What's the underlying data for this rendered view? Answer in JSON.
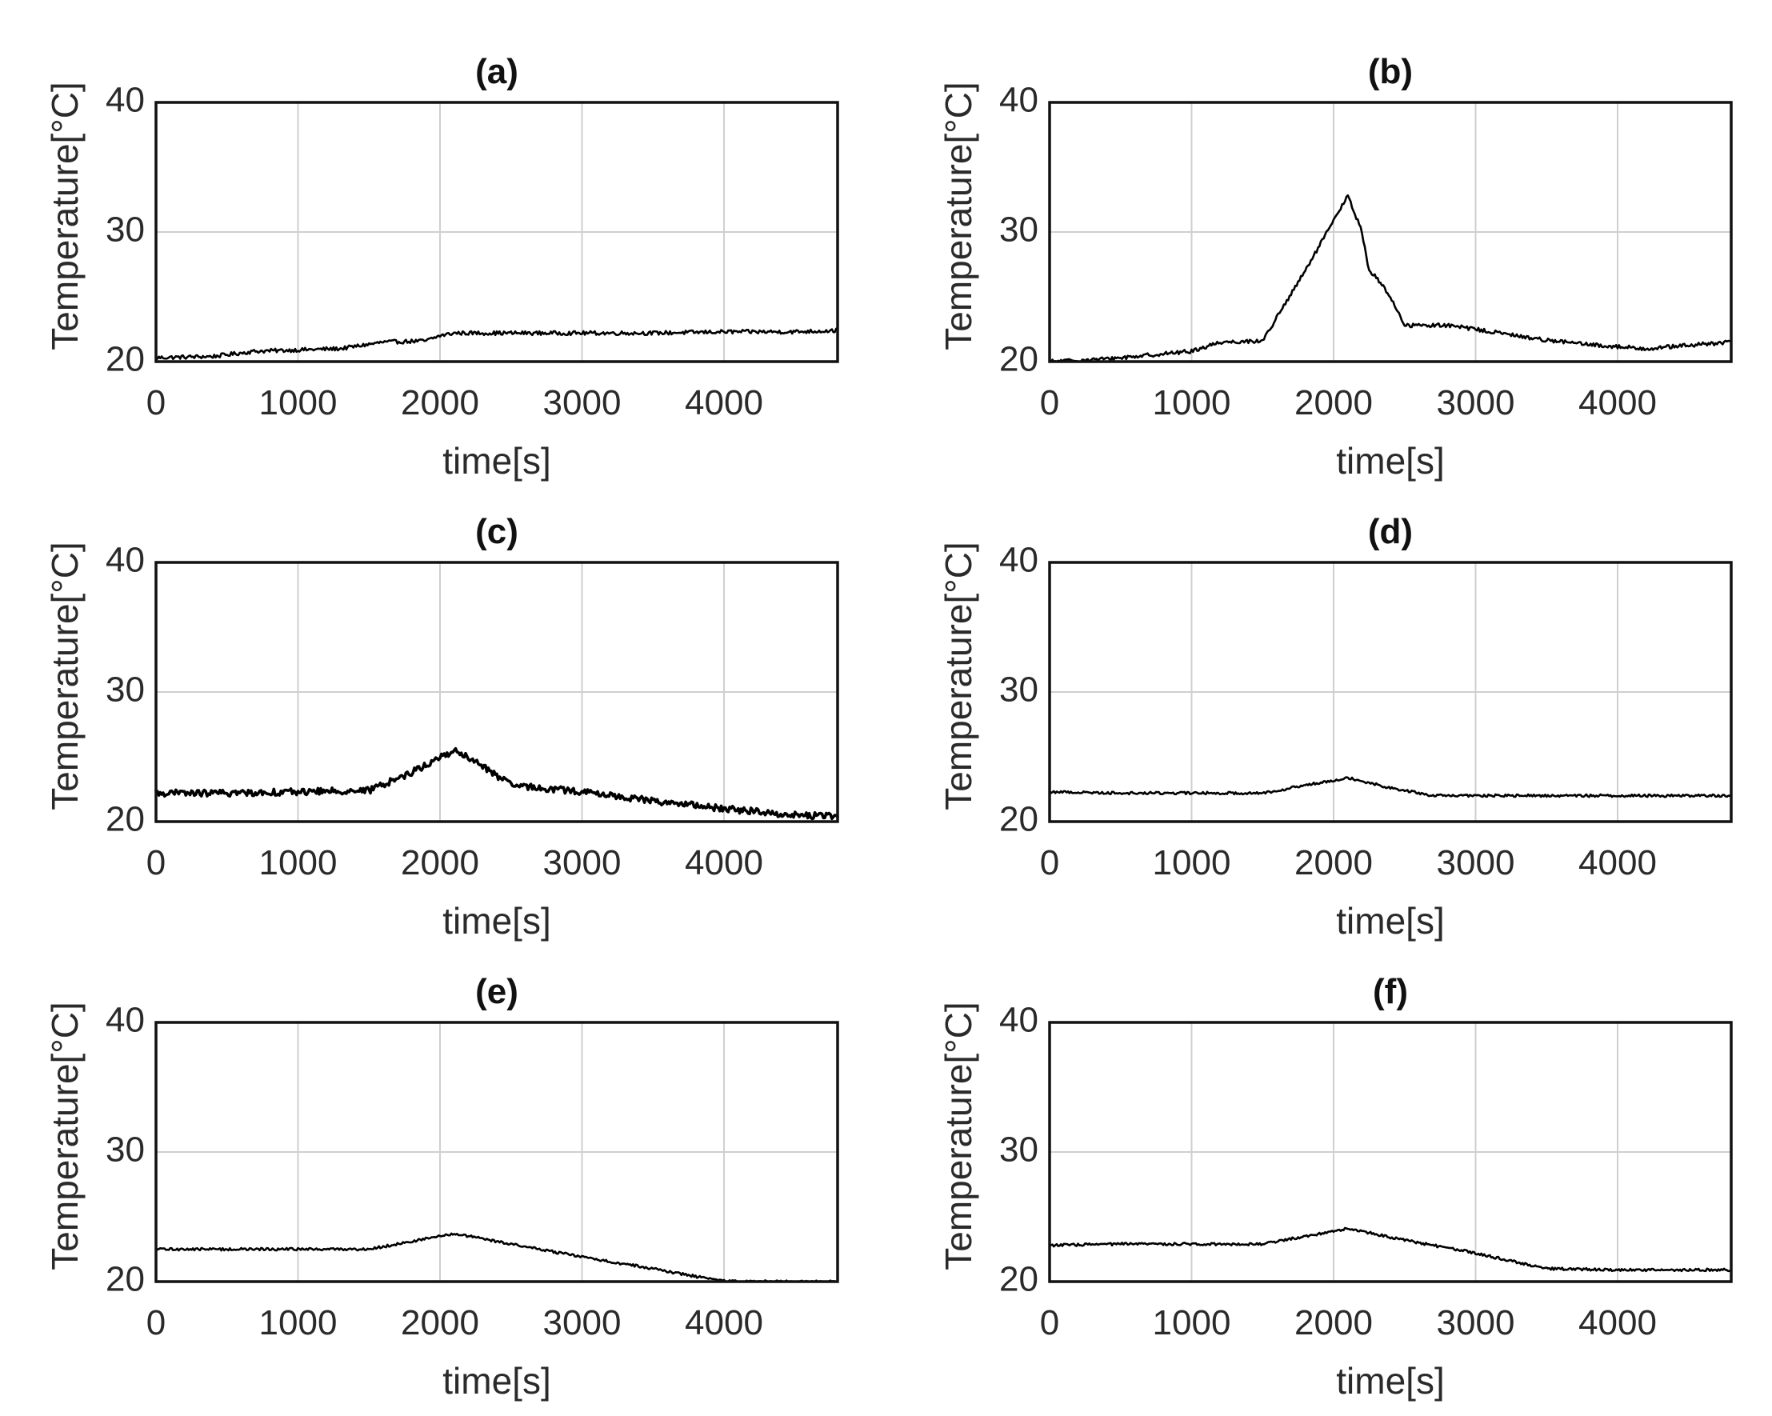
{
  "chart_data": [
    {
      "type": "line",
      "title": "(a)",
      "xlabel": "time[s]",
      "ylabel": "Temperature[°C]",
      "xlim": [
        0,
        4800
      ],
      "ylim": [
        20,
        40
      ],
      "xticks": [
        0,
        1000,
        2000,
        3000,
        4000
      ],
      "yticks": [
        20,
        30,
        40
      ],
      "grid": true,
      "noise": 0.15,
      "series": [
        {
          "name": "temperature",
          "x": [
            0,
            400,
            700,
            1000,
            1300,
            1600,
            1900,
            2000,
            2100,
            2500,
            3000,
            3500,
            4000,
            4500,
            4800
          ],
          "y": [
            20.3,
            20.4,
            20.8,
            20.9,
            21.0,
            21.5,
            21.6,
            22.0,
            22.2,
            22.2,
            22.2,
            22.2,
            22.3,
            22.3,
            22.4
          ]
        }
      ]
    },
    {
      "type": "line",
      "title": "(b)",
      "xlabel": "time[s]",
      "ylabel": "Temperature[°C]",
      "xlim": [
        0,
        4800
      ],
      "ylim": [
        20,
        40
      ],
      "xticks": [
        0,
        1000,
        2000,
        3000,
        4000
      ],
      "yticks": [
        20,
        30,
        40
      ],
      "grid": true,
      "noise": 0.15,
      "series": [
        {
          "name": "temperature",
          "x": [
            0,
            400,
            1000,
            1200,
            1500,
            1800,
            2100,
            2200,
            2250,
            2300,
            2400,
            2500,
            2800,
            3000,
            3400,
            3800,
            4200,
            4800
          ],
          "y": [
            20.0,
            20.2,
            20.8,
            21.5,
            21.6,
            27.0,
            32.8,
            30.0,
            27.0,
            26.5,
            25.0,
            22.8,
            22.8,
            22.5,
            21.8,
            21.3,
            21.0,
            21.5
          ]
        }
      ]
    },
    {
      "type": "line",
      "title": "(c)",
      "xlabel": "time[s]",
      "ylabel": "Temperature[°C]",
      "xlim": [
        0,
        4800
      ],
      "ylim": [
        20,
        40
      ],
      "xticks": [
        0,
        1000,
        2000,
        3000,
        4000
      ],
      "yticks": [
        20,
        30,
        40
      ],
      "grid": true,
      "noise": 0.25,
      "series": [
        {
          "name": "temperature",
          "x": [
            0,
            500,
            1000,
            1500,
            1800,
            2100,
            2300,
            2500,
            3000,
            3500,
            4000,
            4500,
            4800
          ],
          "y": [
            22.2,
            22.2,
            22.3,
            22.4,
            23.8,
            25.5,
            24.3,
            22.8,
            22.3,
            21.6,
            21.0,
            20.5,
            20.4
          ]
        }
      ]
    },
    {
      "type": "line",
      "title": "(d)",
      "xlabel": "time[s]",
      "ylabel": "Temperature[°C]",
      "xlim": [
        0,
        4800
      ],
      "ylim": [
        20,
        40
      ],
      "xticks": [
        0,
        1000,
        2000,
        3000,
        4000
      ],
      "yticks": [
        20,
        30,
        40
      ],
      "grid": true,
      "noise": 0.1,
      "series": [
        {
          "name": "temperature",
          "x": [
            0,
            500,
            1000,
            1500,
            1800,
            2100,
            2400,
            2700,
            3000,
            3500,
            4000,
            4800
          ],
          "y": [
            22.3,
            22.2,
            22.2,
            22.2,
            22.8,
            23.4,
            22.6,
            22.0,
            22.0,
            22.0,
            22.0,
            22.0
          ]
        }
      ]
    },
    {
      "type": "line",
      "title": "(e)",
      "xlabel": "time[s]",
      "ylabel": "Temperature[°C]",
      "xlim": [
        0,
        4800
      ],
      "ylim": [
        20,
        40
      ],
      "xticks": [
        0,
        1000,
        2000,
        3000,
        4000
      ],
      "yticks": [
        20,
        30,
        40
      ],
      "grid": true,
      "noise": 0.1,
      "series": [
        {
          "name": "temperature",
          "x": [
            0,
            500,
            1000,
            1500,
            1800,
            2100,
            2500,
            3000,
            3500,
            3950,
            4100,
            4800
          ],
          "y": [
            22.5,
            22.5,
            22.5,
            22.5,
            23.1,
            23.7,
            22.9,
            21.9,
            21.0,
            20.1,
            20.0,
            20.0
          ]
        }
      ]
    },
    {
      "type": "line",
      "title": "(f)",
      "xlabel": "time[s]",
      "ylabel": "Temperature[°C]",
      "xlim": [
        0,
        4800
      ],
      "ylim": [
        20,
        40
      ],
      "xticks": [
        0,
        1000,
        2000,
        3000,
        4000
      ],
      "yticks": [
        20,
        30,
        40
      ],
      "grid": true,
      "noise": 0.1,
      "series": [
        {
          "name": "temperature",
          "x": [
            0,
            500,
            1000,
            1500,
            1800,
            2100,
            2500,
            3000,
            3500,
            4000,
            4800
          ],
          "y": [
            22.8,
            22.9,
            22.9,
            22.9,
            23.5,
            24.1,
            23.2,
            22.2,
            21.0,
            20.9,
            20.9
          ]
        }
      ]
    }
  ]
}
